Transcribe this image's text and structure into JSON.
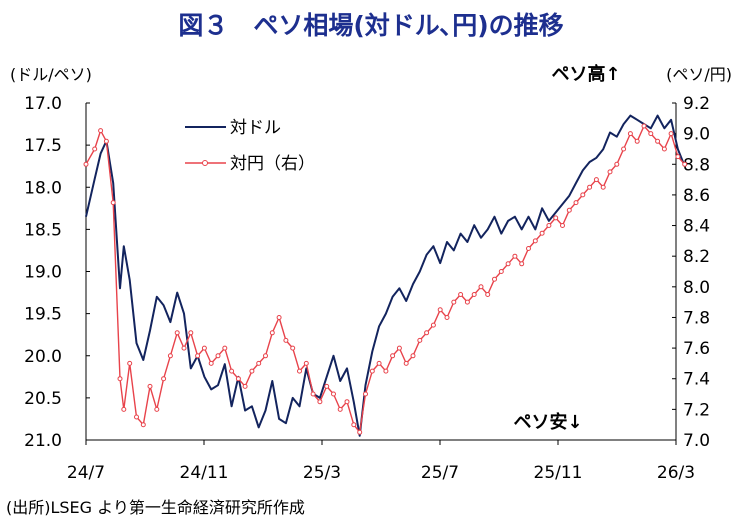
{
  "title": "図３　ペソ相場(対ドル､円)の推移",
  "source": "(出所)LSEG より第一生命経済研究所作成",
  "chart_data": {
    "type": "line",
    "left_axis": {
      "unit_label": "(ドル/ペソ)",
      "ylim": [
        21.0,
        17.0
      ],
      "inverted": true,
      "ticks": [
        "17.0",
        "17.5",
        "18.0",
        "18.5",
        "19.0",
        "19.5",
        "20.0",
        "20.5",
        "21.0"
      ]
    },
    "right_axis": {
      "unit_label": "(ペソ/円)",
      "ylim": [
        7.0,
        9.2
      ],
      "ticks": [
        "9.2",
        "9.0",
        "8.8",
        "8.6",
        "8.4",
        "8.2",
        "8.0",
        "7.8",
        "7.6",
        "7.4",
        "7.2",
        "7.0"
      ]
    },
    "x_ticks": [
      "24/7",
      "24/11",
      "25/3",
      "25/7",
      "25/11",
      "26/3"
    ],
    "annotations": {
      "top": "ペソ高↑",
      "bottom": "ペソ安↓"
    },
    "legend_position": "top-left",
    "grid": false,
    "series": [
      {
        "name": "対ドル",
        "axis": "left",
        "color": "#13245e",
        "marker": "none",
        "x": [
          "2024-07-01",
          "2024-07-10",
          "2024-07-16",
          "2024-07-22",
          "2024-07-29",
          "2024-08-05",
          "2024-08-09",
          "2024-08-15",
          "2024-08-22",
          "2024-08-29",
          "2024-09-05",
          "2024-09-12",
          "2024-09-19",
          "2024-09-26",
          "2024-10-03",
          "2024-10-10",
          "2024-10-17",
          "2024-10-24",
          "2024-10-31",
          "2024-11-07",
          "2024-11-14",
          "2024-11-21",
          "2024-11-28",
          "2024-12-05",
          "2024-12-12",
          "2024-12-19",
          "2024-12-26",
          "2025-01-02",
          "2025-01-09",
          "2025-01-16",
          "2025-01-23",
          "2025-01-30",
          "2025-02-06",
          "2025-02-13",
          "2025-02-20",
          "2025-02-27",
          "2025-03-06",
          "2025-03-13",
          "2025-03-20",
          "2025-03-27",
          "2025-04-03",
          "2025-04-09",
          "2025-04-15",
          "2025-04-22",
          "2025-04-29",
          "2025-05-06",
          "2025-05-13",
          "2025-05-20",
          "2025-05-27",
          "2025-06-03",
          "2025-06-10",
          "2025-06-17",
          "2025-06-24",
          "2025-07-01",
          "2025-07-08",
          "2025-07-15",
          "2025-07-22",
          "2025-07-29",
          "2025-08-05",
          "2025-08-12",
          "2025-08-19",
          "2025-08-26",
          "2025-09-02",
          "2025-09-09",
          "2025-09-16",
          "2025-09-23",
          "2025-09-30",
          "2025-10-07",
          "2025-10-14",
          "2025-10-21",
          "2025-10-28",
          "2025-11-04",
          "2025-11-11",
          "2025-11-18",
          "2025-11-25",
          "2025-12-02",
          "2025-12-09",
          "2025-12-16",
          "2025-12-23",
          "2025-12-30",
          "2026-01-06",
          "2026-01-13",
          "2026-01-20",
          "2026-01-27",
          "2026-02-03",
          "2026-02-10",
          "2026-02-17",
          "2026-02-24",
          "2026-03-03",
          "2026-03-10"
        ],
        "values": [
          18.35,
          17.9,
          17.6,
          17.45,
          17.95,
          19.2,
          18.7,
          19.1,
          19.85,
          20.05,
          19.7,
          19.3,
          19.4,
          19.6,
          19.25,
          19.5,
          20.15,
          20.0,
          20.25,
          20.4,
          20.35,
          20.1,
          20.6,
          20.25,
          20.65,
          20.6,
          20.85,
          20.65,
          20.3,
          20.75,
          20.8,
          20.5,
          20.6,
          20.15,
          20.45,
          20.5,
          20.25,
          20.0,
          20.3,
          20.15,
          20.55,
          20.95,
          20.35,
          19.95,
          19.65,
          19.5,
          19.3,
          19.2,
          19.35,
          19.15,
          19.0,
          18.8,
          18.7,
          18.9,
          18.65,
          18.75,
          18.55,
          18.65,
          18.45,
          18.6,
          18.5,
          18.35,
          18.55,
          18.4,
          18.35,
          18.5,
          18.35,
          18.5,
          18.25,
          18.4,
          18.3,
          18.2,
          18.1,
          17.95,
          17.8,
          17.7,
          17.65,
          17.55,
          17.35,
          17.4,
          17.25,
          17.15,
          17.2,
          17.25,
          17.3,
          17.15,
          17.3,
          17.2,
          17.55,
          17.75
        ]
      },
      {
        "name": "対円（右）",
        "axis": "right",
        "color": "#e8434b",
        "marker": "circle",
        "x": [
          "2024-07-01",
          "2024-07-10",
          "2024-07-16",
          "2024-07-22",
          "2024-07-29",
          "2024-08-05",
          "2024-08-09",
          "2024-08-15",
          "2024-08-22",
          "2024-08-29",
          "2024-09-05",
          "2024-09-12",
          "2024-09-19",
          "2024-09-26",
          "2024-10-03",
          "2024-10-10",
          "2024-10-17",
          "2024-10-24",
          "2024-10-31",
          "2024-11-07",
          "2024-11-14",
          "2024-11-21",
          "2024-11-28",
          "2024-12-05",
          "2024-12-12",
          "2024-12-19",
          "2024-12-26",
          "2025-01-02",
          "2025-01-09",
          "2025-01-16",
          "2025-01-23",
          "2025-01-30",
          "2025-02-06",
          "2025-02-13",
          "2025-02-20",
          "2025-02-27",
          "2025-03-06",
          "2025-03-13",
          "2025-03-20",
          "2025-03-27",
          "2025-04-03",
          "2025-04-09",
          "2025-04-15",
          "2025-04-22",
          "2025-04-29",
          "2025-05-06",
          "2025-05-13",
          "2025-05-20",
          "2025-05-27",
          "2025-06-03",
          "2025-06-10",
          "2025-06-17",
          "2025-06-24",
          "2025-07-01",
          "2025-07-08",
          "2025-07-15",
          "2025-07-22",
          "2025-07-29",
          "2025-08-05",
          "2025-08-12",
          "2025-08-19",
          "2025-08-26",
          "2025-09-02",
          "2025-09-09",
          "2025-09-16",
          "2025-09-23",
          "2025-09-30",
          "2025-10-07",
          "2025-10-14",
          "2025-10-21",
          "2025-10-28",
          "2025-11-04",
          "2025-11-11",
          "2025-11-18",
          "2025-11-25",
          "2025-12-02",
          "2025-12-09",
          "2025-12-16",
          "2025-12-23",
          "2025-12-30",
          "2026-01-06",
          "2026-01-13",
          "2026-01-20",
          "2026-01-27",
          "2026-02-03",
          "2026-02-10",
          "2026-02-17",
          "2026-02-24",
          "2026-03-03",
          "2026-03-10"
        ],
        "values": [
          8.8,
          8.9,
          9.02,
          8.95,
          8.55,
          7.4,
          7.2,
          7.5,
          7.15,
          7.1,
          7.35,
          7.2,
          7.4,
          7.55,
          7.7,
          7.6,
          7.7,
          7.55,
          7.6,
          7.5,
          7.55,
          7.6,
          7.45,
          7.4,
          7.35,
          7.45,
          7.5,
          7.55,
          7.7,
          7.8,
          7.65,
          7.6,
          7.45,
          7.5,
          7.3,
          7.25,
          7.35,
          7.3,
          7.2,
          7.25,
          7.1,
          7.05,
          7.3,
          7.45,
          7.5,
          7.45,
          7.55,
          7.6,
          7.5,
          7.55,
          7.65,
          7.7,
          7.75,
          7.85,
          7.8,
          7.9,
          7.95,
          7.9,
          7.95,
          8.0,
          7.95,
          8.05,
          8.1,
          8.15,
          8.2,
          8.15,
          8.25,
          8.3,
          8.35,
          8.4,
          8.45,
          8.4,
          8.5,
          8.55,
          8.6,
          8.65,
          8.7,
          8.65,
          8.75,
          8.8,
          8.9,
          9.0,
          8.95,
          9.05,
          9.0,
          8.95,
          8.9,
          9.0,
          8.85,
          8.8
        ]
      }
    ]
  }
}
